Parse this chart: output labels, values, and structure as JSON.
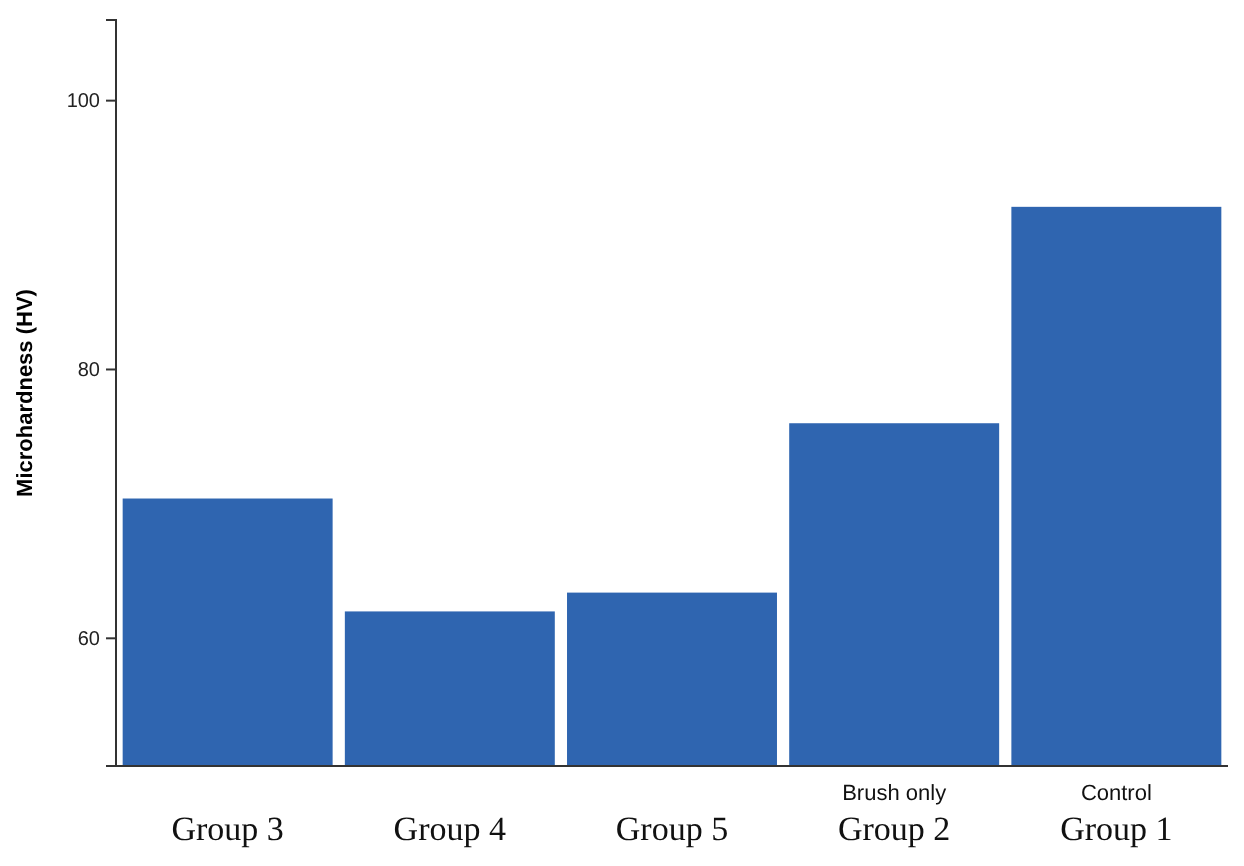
{
  "chart_data": {
    "type": "bar",
    "ylabel": "Microhardness (HV)",
    "categories": [
      "Group 3",
      "Group 4",
      "Group 5",
      "Brush only\nGroup 2",
      "Control\nGroup 1"
    ],
    "values": [
      70.4,
      62.0,
      63.4,
      76.0,
      92.1
    ],
    "color": "#2f65b0",
    "ylim": [
      50.5,
      106
    ],
    "yticks": [
      60,
      80,
      100
    ],
    "grid": false
  }
}
